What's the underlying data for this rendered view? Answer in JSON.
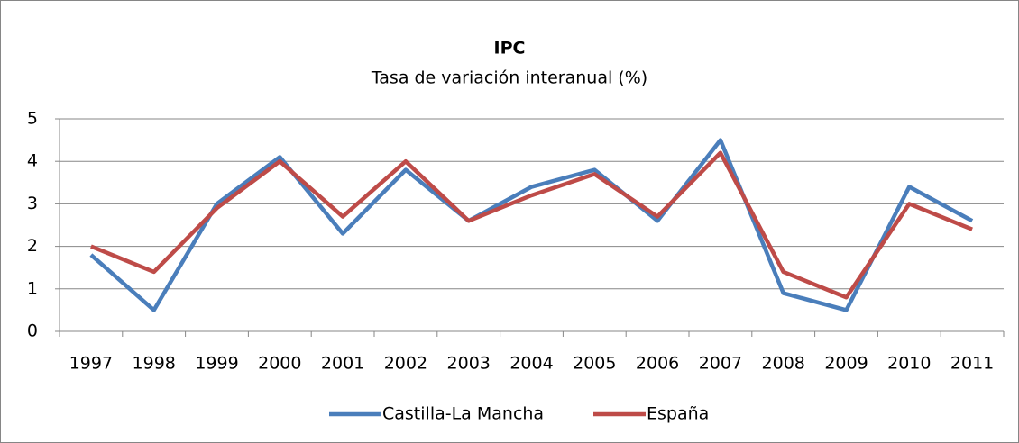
{
  "chart_data": {
    "type": "line",
    "title": "IPC",
    "subtitle": "Tasa de variación interanual (%)",
    "categories": [
      "1997",
      "1998",
      "1999",
      "2000",
      "2001",
      "2002",
      "2003",
      "2004",
      "2005",
      "2006",
      "2007",
      "2008",
      "2009",
      "2010",
      "2011"
    ],
    "series": [
      {
        "name": "Castilla-La Mancha",
        "color": "#4a7ebb",
        "values": [
          1.8,
          0.5,
          3.0,
          4.1,
          2.3,
          3.8,
          2.6,
          3.4,
          3.8,
          2.6,
          4.5,
          0.9,
          0.5,
          3.4,
          2.6
        ]
      },
      {
        "name": "España",
        "color": "#be4b48",
        "values": [
          2.0,
          1.4,
          2.9,
          4.0,
          2.7,
          4.0,
          2.6,
          3.2,
          3.7,
          2.7,
          4.2,
          1.4,
          0.8,
          3.0,
          2.4
        ]
      }
    ],
    "ylim": [
      0,
      5
    ],
    "yticks": [
      0,
      1,
      2,
      3,
      4,
      5
    ],
    "grid": true,
    "legend": "bottom"
  }
}
